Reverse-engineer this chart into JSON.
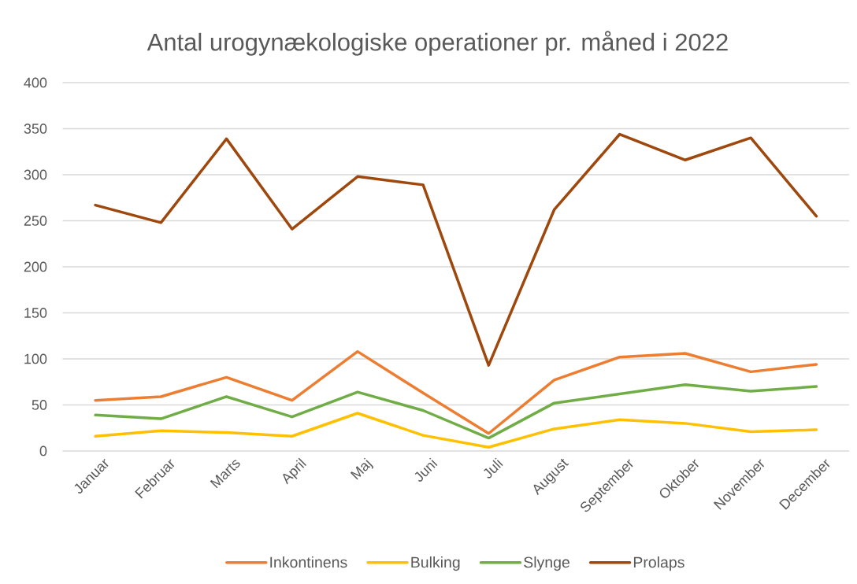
{
  "chart_data": {
    "type": "line",
    "title": "Antal urogynækologiske operationer pr. måned i 2022",
    "categories": [
      "Januar",
      "Februar",
      "Marts",
      "April",
      "Maj",
      "Juni",
      "Juli",
      "August",
      "September",
      "Oktober",
      "November",
      "December"
    ],
    "series": [
      {
        "name": "Inkontinens",
        "color": "#ed7d31",
        "values": [
          55,
          59,
          80,
          55,
          108,
          63,
          19,
          77,
          102,
          106,
          86,
          94
        ]
      },
      {
        "name": "Bulking",
        "color": "#ffc000",
        "values": [
          16,
          22,
          20,
          16,
          41,
          17,
          4,
          24,
          34,
          30,
          21,
          23
        ]
      },
      {
        "name": "Slynge",
        "color": "#70ad47",
        "values": [
          39,
          35,
          59,
          37,
          64,
          44,
          14,
          52,
          62,
          72,
          65,
          70
        ]
      },
      {
        "name": "Prolaps",
        "color": "#9e480e",
        "values": [
          267,
          248,
          339,
          241,
          298,
          289,
          93,
          262,
          344,
          316,
          340,
          255
        ]
      }
    ],
    "ylim": [
      0,
      400
    ],
    "yticks": [
      0,
      50,
      100,
      150,
      200,
      250,
      300,
      350,
      400
    ],
    "grid": "y",
    "legend": "bottom",
    "line_style": "solid"
  }
}
